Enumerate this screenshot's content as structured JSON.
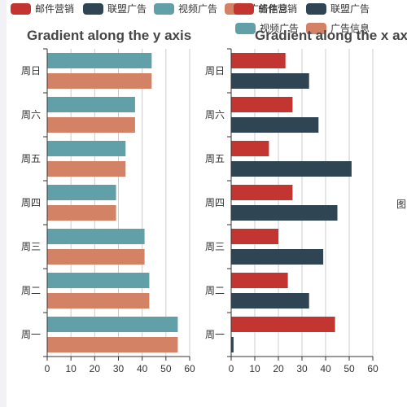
{
  "colors": {
    "email": "#c23531",
    "union": "#2f4554",
    "video": "#61a0a8",
    "ad": "#d48265",
    "axis": "#333333",
    "grid": "#cccccc"
  },
  "legend": {
    "left": [
      {
        "label": "邮件营销",
        "color": "#c23531"
      },
      {
        "label": "联盟广告",
        "color": "#2f4554"
      },
      {
        "label": "视频广告",
        "color": "#61a0a8"
      },
      {
        "label": "广告信息",
        "color": "#d48265"
      }
    ],
    "right": [
      {
        "label": "邮件营销",
        "color": "#c23531"
      },
      {
        "label": "联盟广告",
        "color": "#2f4554"
      },
      {
        "label": "视频广告",
        "color": "#61a0a8"
      },
      {
        "label": "广告信息",
        "color": "#d48265"
      }
    ]
  },
  "side_glyph": "图",
  "chart_data": [
    {
      "type": "bar",
      "orientation": "horizontal",
      "title": "Gradient along the y axis",
      "categories": [
        "周一",
        "周二",
        "周三",
        "周四",
        "周五",
        "周六",
        "周日"
      ],
      "xlim": [
        0,
        60
      ],
      "xticks": [
        0,
        10,
        20,
        30,
        40,
        50,
        60
      ],
      "grid": true,
      "legend_position": "top",
      "series": [
        {
          "name": "广告信息",
          "color": "#d48265",
          "values": [
            55,
            43,
            41,
            29,
            33,
            37,
            44
          ]
        },
        {
          "name": "视频广告",
          "color": "#61a0a8",
          "values": [
            55,
            43,
            41,
            29,
            33,
            37,
            44
          ]
        }
      ]
    },
    {
      "type": "bar",
      "orientation": "horizontal",
      "title": "Gradient along the x axis",
      "categories": [
        "周一",
        "周二",
        "周三",
        "周四",
        "周五",
        "周六",
        "周日"
      ],
      "xlim": [
        0,
        60
      ],
      "xticks": [
        0,
        10,
        20,
        30,
        40,
        50,
        60
      ],
      "grid": true,
      "legend_position": "top",
      "series": [
        {
          "name": "联盟广告",
          "color": "#2f4554",
          "values": [
            1,
            33,
            39,
            45,
            51,
            37,
            33
          ]
        },
        {
          "name": "邮件营销",
          "color": "#c23531",
          "values": [
            44,
            24,
            20,
            26,
            16,
            26,
            23
          ]
        }
      ]
    }
  ]
}
